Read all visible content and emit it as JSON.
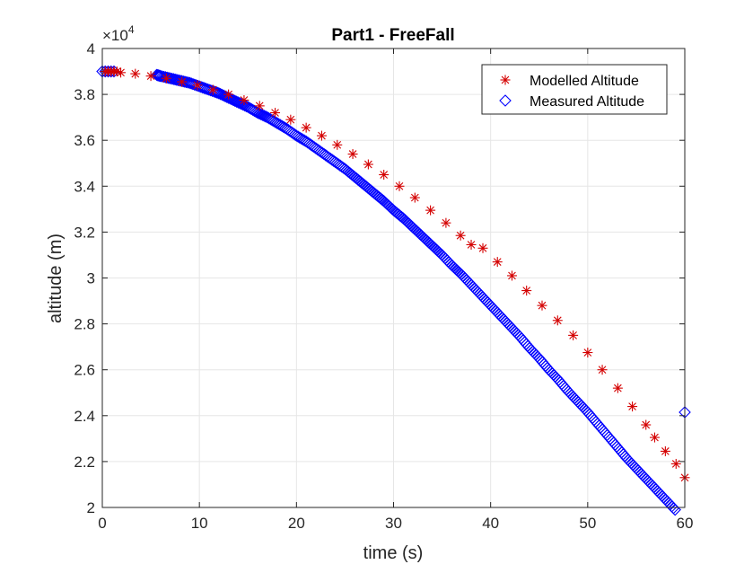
{
  "chart_data": {
    "type": "scatter",
    "title": "Part1 - FreeFall",
    "xlabel": "time (s)",
    "ylabel": "altitude (m)",
    "xlim": [
      0,
      60
    ],
    "ylim": [
      20000,
      40000
    ],
    "y_exponent_label": {
      "base": "×10",
      "power": "4"
    },
    "x_ticks": [
      0,
      10,
      20,
      30,
      40,
      50,
      60
    ],
    "x_tick_labels": [
      "0",
      "10",
      "20",
      "30",
      "40",
      "50",
      "60"
    ],
    "y_ticks": [
      20000,
      22000,
      24000,
      26000,
      28000,
      30000,
      32000,
      34000,
      36000,
      38000,
      40000
    ],
    "y_tick_labels": [
      "2",
      "2.2",
      "2.4",
      "2.6",
      "2.8",
      "3",
      "3.2",
      "3.4",
      "3.6",
      "3.8",
      "4"
    ],
    "grid": true,
    "legend_position": "top-right",
    "series": [
      {
        "name": "Modelled Altitude",
        "marker": "asterisk",
        "color": "#d40000",
        "x": [
          0.3,
          0.6,
          0.9,
          1.2,
          1.5,
          1.9,
          3.4,
          5.0,
          6.6,
          8.2,
          9.8,
          11.4,
          13.0,
          14.6,
          16.2,
          17.8,
          19.4,
          21.0,
          22.6,
          24.2,
          25.8,
          27.4,
          29.0,
          30.6,
          32.2,
          33.8,
          35.4,
          36.9,
          38.0,
          39.2,
          40.7,
          42.2,
          43.7,
          45.3,
          46.9,
          48.5,
          50.0,
          51.5,
          53.1,
          54.6,
          56.0,
          56.9,
          58.0,
          59.1,
          60.0
        ],
        "y": [
          39000,
          39000,
          39000,
          39000,
          39000,
          38950,
          38900,
          38800,
          38700,
          38550,
          38400,
          38200,
          38000,
          37750,
          37500,
          37200,
          36900,
          36550,
          36200,
          35800,
          35400,
          34950,
          34500,
          34000,
          33500,
          32950,
          32400,
          31850,
          31450,
          31300,
          30700,
          30100,
          29450,
          28800,
          28150,
          27500,
          26750,
          26000,
          25200,
          24400,
          23600,
          23050,
          22450,
          21900,
          21300
        ]
      },
      {
        "name": "Measured Altitude",
        "marker": "diamond",
        "color": "#0000ff",
        "x": [
          0.0,
          0.3,
          0.6,
          0.9,
          1.2,
          5.6,
          6.0,
          7.0,
          8.0,
          9.0,
          10.0,
          11.0,
          12.0,
          13.0,
          14.0,
          15.0,
          16.0,
          17.0,
          18.0,
          19.0,
          20.0,
          21.0,
          22.0,
          23.0,
          24.0,
          25.0,
          26.0,
          27.0,
          28.0,
          29.0,
          30.0,
          31.0,
          32.0,
          33.0,
          34.0,
          35.0,
          36.0,
          37.0,
          38.0,
          39.0,
          40.0,
          41.0,
          42.0,
          43.0,
          44.0,
          45.0,
          46.0,
          47.0,
          48.0,
          49.0,
          50.0,
          51.0,
          52.0,
          53.0,
          54.0,
          55.0,
          56.0,
          57.0,
          58.0,
          59.0,
          60.0
        ],
        "y": [
          39000,
          39000,
          39000,
          39000,
          39000,
          38850,
          38800,
          38700,
          38600,
          38500,
          38350,
          38200,
          38050,
          37850,
          37650,
          37450,
          37200,
          37000,
          36750,
          36500,
          36200,
          35950,
          35650,
          35350,
          35050,
          34750,
          34400,
          34050,
          33700,
          33350,
          32950,
          32600,
          32200,
          31800,
          31400,
          31000,
          30550,
          30150,
          29700,
          29250,
          28800,
          28350,
          27900,
          27450,
          26950,
          26500,
          26000,
          25550,
          25050,
          24600,
          24150,
          23650,
          23150,
          22650,
          22150,
          21700,
          21250,
          20800,
          20350,
          19900,
          24150
        ]
      }
    ]
  }
}
